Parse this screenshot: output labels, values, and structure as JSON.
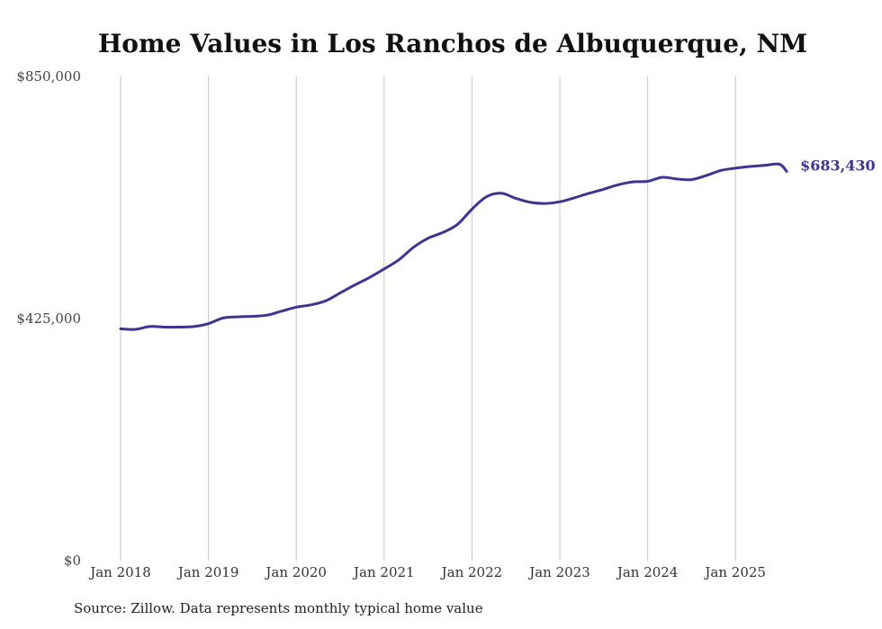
{
  "chart_data": {
    "type": "line",
    "title": "Home Values in Los Ranchos de Albuquerque, NM",
    "xlabel": "",
    "ylabel": "",
    "ylim": [
      0,
      850000
    ],
    "y_ticks": [
      "$0",
      "$425,000",
      "$850,000"
    ],
    "y_tick_values": [
      0,
      425000,
      850000
    ],
    "x_ticks": [
      "Jan 2018",
      "Jan 2019",
      "Jan 2020",
      "Jan 2021",
      "Jan 2022",
      "Jan 2023",
      "Jan 2024",
      "Jan 2025"
    ],
    "grid": "vertical",
    "line_color": "#3d3590",
    "series": [
      {
        "end_label": "$683,430",
        "x": [
          "2018-01",
          "2018-03",
          "2018-05",
          "2018-07",
          "2018-09",
          "2018-11",
          "2019-01",
          "2019-03",
          "2019-05",
          "2019-07",
          "2019-09",
          "2019-11",
          "2020-01",
          "2020-03",
          "2020-05",
          "2020-07",
          "2020-09",
          "2020-11",
          "2021-01",
          "2021-03",
          "2021-05",
          "2021-07",
          "2021-09",
          "2021-11",
          "2022-01",
          "2022-03",
          "2022-05",
          "2022-07",
          "2022-09",
          "2022-11",
          "2023-01",
          "2023-03",
          "2023-05",
          "2023-07",
          "2023-09",
          "2023-11",
          "2024-01",
          "2024-03",
          "2024-05",
          "2024-07",
          "2024-09",
          "2024-11",
          "2025-01",
          "2025-03",
          "2025-05",
          "2025-07",
          "2025-08"
        ],
        "values": [
          407000,
          406000,
          411000,
          410000,
          410000,
          411000,
          416000,
          426000,
          428000,
          429000,
          431000,
          438000,
          445000,
          449000,
          456000,
          470000,
          484000,
          497000,
          512000,
          528000,
          550000,
          566000,
          576000,
          590000,
          617000,
          639000,
          645000,
          636000,
          629000,
          627000,
          630000,
          637000,
          645000,
          652000,
          660000,
          665000,
          666000,
          673000,
          670000,
          669000,
          676000,
          685000,
          689000,
          692000,
          694000,
          696000,
          683430
        ]
      }
    ]
  },
  "footer": {
    "source": "Source: Zillow. Data represents monthly typical home value"
  }
}
